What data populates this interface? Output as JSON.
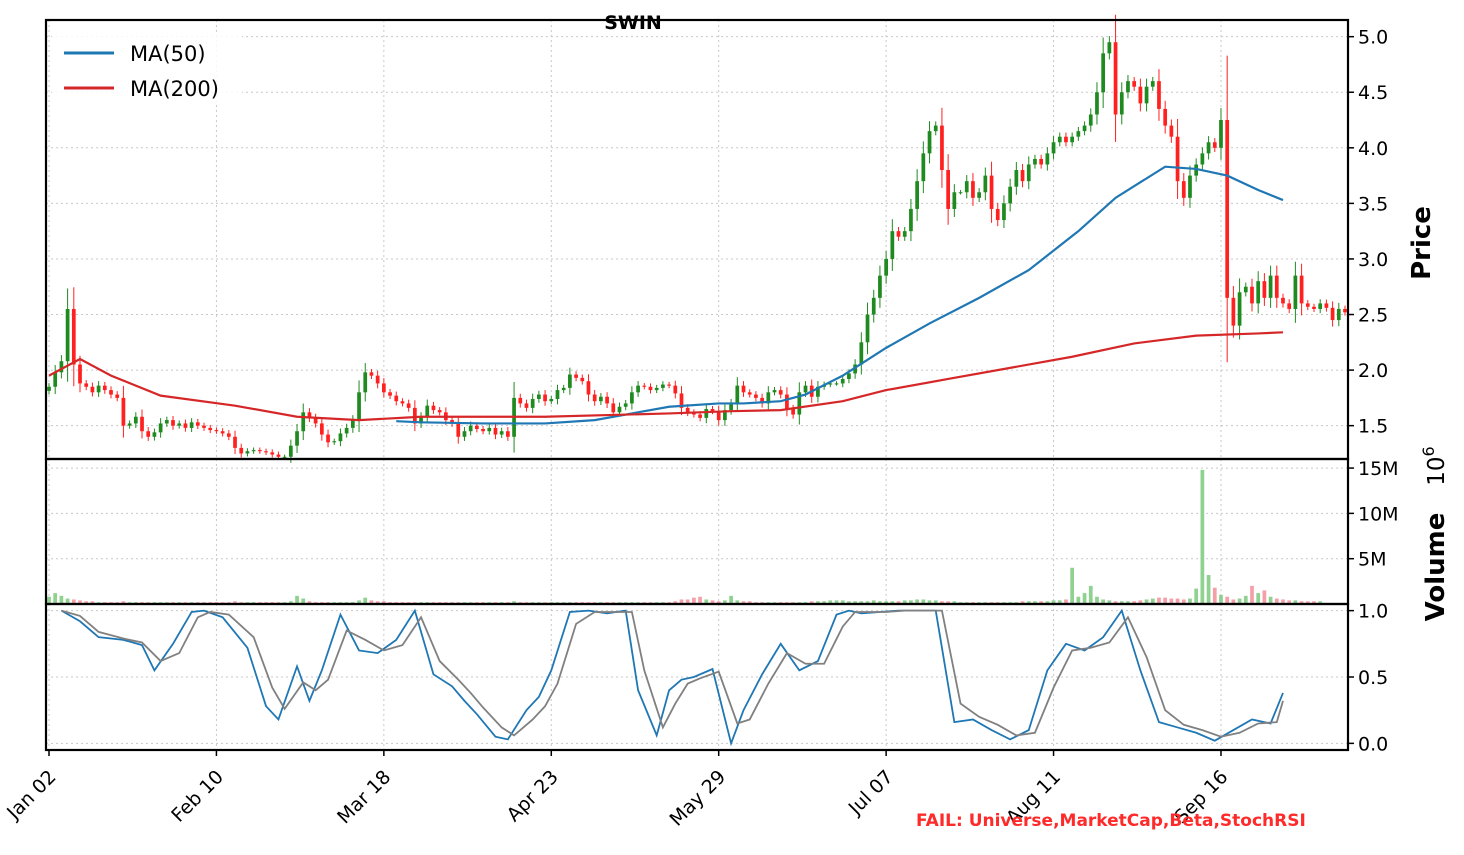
{
  "chart_data": {
    "type": "candlestick",
    "title": "SWIN",
    "x_tick_labels": [
      "Jan 02",
      "Feb 10",
      "Mar 18",
      "Apr 23",
      "May 29",
      "Jul 07",
      "Aug 11",
      "Sep 16"
    ],
    "x_tick_index": [
      0,
      27,
      54,
      81,
      108,
      135,
      162,
      189
    ],
    "price_panel": {
      "ylabel": "Price",
      "ylim": [
        1.2,
        5.15
      ],
      "yticks": [
        1.5,
        2.0,
        2.5,
        3.0,
        3.5,
        4.0,
        4.5,
        5.0
      ],
      "ytick_labels": [
        "1.5",
        "2.0",
        "2.5",
        "3.0",
        "3.5",
        "4.0",
        "4.5",
        "5.0"
      ],
      "grid": true,
      "legend_position": "top-left",
      "up_color": "#1f8a1f",
      "down_color": "#ff2020",
      "close": [
        1.85,
        1.98,
        2.08,
        2.55,
        2.05,
        1.88,
        1.85,
        1.8,
        1.86,
        1.82,
        1.78,
        1.75,
        1.5,
        1.52,
        1.58,
        1.45,
        1.4,
        1.44,
        1.52,
        1.55,
        1.5,
        1.52,
        1.48,
        1.53,
        1.5,
        1.48,
        1.46,
        1.45,
        1.43,
        1.4,
        1.3,
        1.25,
        1.27,
        1.28,
        1.27,
        1.26,
        1.24,
        1.22,
        1.22,
        1.32,
        1.45,
        1.62,
        1.57,
        1.52,
        1.42,
        1.35,
        1.36,
        1.43,
        1.48,
        1.55,
        1.8,
        1.98,
        1.95,
        1.88,
        1.8,
        1.77,
        1.72,
        1.7,
        1.66,
        1.52,
        1.58,
        1.68,
        1.64,
        1.62,
        1.55,
        1.52,
        1.4,
        1.45,
        1.5,
        1.47,
        1.45,
        1.48,
        1.42,
        1.45,
        1.4,
        1.75,
        1.7,
        1.66,
        1.74,
        1.78,
        1.72,
        1.74,
        1.82,
        1.84,
        1.96,
        1.93,
        1.9,
        1.78,
        1.72,
        1.76,
        1.7,
        1.62,
        1.67,
        1.7,
        1.8,
        1.86,
        1.85,
        1.82,
        1.84,
        1.87,
        1.86,
        1.79,
        1.66,
        1.62,
        1.6,
        1.57,
        1.65,
        1.63,
        1.55,
        1.64,
        1.7,
        1.86,
        1.8,
        1.78,
        1.75,
        1.7,
        1.8,
        1.82,
        1.78,
        1.65,
        1.6,
        1.8,
        1.86,
        1.76,
        1.85,
        1.87,
        1.88,
        1.88,
        1.92,
        1.97,
        2.05,
        2.25,
        2.5,
        2.65,
        2.85,
        3.0,
        3.25,
        3.2,
        3.25,
        3.45,
        3.7,
        3.95,
        4.15,
        4.2,
        3.8,
        3.45,
        3.6,
        3.6,
        3.7,
        3.55,
        3.6,
        3.75,
        3.45,
        3.35,
        3.5,
        3.65,
        3.8,
        3.7,
        3.85,
        3.9,
        3.85,
        3.95,
        4.05,
        4.1,
        4.05,
        4.1,
        4.15,
        4.2,
        4.3,
        4.5,
        4.85,
        4.95,
        4.3,
        4.5,
        4.6,
        4.55,
        4.4,
        4.55,
        4.6,
        4.35,
        4.2,
        4.1,
        3.7,
        3.55,
        3.75,
        3.85,
        3.95,
        4.05,
        4.0,
        4.25,
        2.65,
        2.4,
        2.7,
        2.75,
        2.6,
        2.8,
        2.65,
        2.85,
        2.65,
        2.6,
        2.55,
        2.85,
        2.6,
        2.57,
        2.55,
        2.6,
        2.56,
        2.45,
        2.55,
        2.52
      ],
      "series": [
        {
          "name": "MA(50)",
          "color": "#1f77b4",
          "x": [
            56,
            60,
            70,
            80,
            88,
            95,
            100,
            108,
            112,
            118,
            122,
            128,
            135,
            142,
            150,
            158,
            166,
            172,
            180,
            185,
            190,
            195,
            199
          ],
          "values": [
            1.54,
            1.53,
            1.52,
            1.52,
            1.55,
            1.62,
            1.67,
            1.7,
            1.7,
            1.72,
            1.78,
            1.95,
            2.2,
            2.42,
            2.65,
            2.9,
            3.25,
            3.55,
            3.83,
            3.81,
            3.75,
            3.62,
            3.53
          ]
        },
        {
          "name": "MA(200)",
          "color": "#d62728",
          "x": [
            0,
            5,
            10,
            18,
            30,
            40,
            50,
            60,
            80,
            100,
            110,
            118,
            128,
            135,
            145,
            155,
            165,
            175,
            185,
            195,
            199
          ],
          "values": [
            1.95,
            2.1,
            1.95,
            1.77,
            1.68,
            1.58,
            1.55,
            1.58,
            1.58,
            1.61,
            1.63,
            1.64,
            1.72,
            1.82,
            1.92,
            2.02,
            2.12,
            2.24,
            2.31,
            2.33,
            2.34
          ]
        }
      ]
    },
    "volume_panel": {
      "ylabel": "Volume",
      "ylim": [
        0,
        16
      ],
      "yticks": [
        5,
        10,
        15
      ],
      "ytick_labels": [
        "5M",
        "10M",
        "15M"
      ],
      "multiplier_label": "10",
      "multiplier_exponent": "6",
      "up_color": "#8fd18f",
      "down_color": "#f5a0a8",
      "values_millions": [
        0.8,
        1.2,
        0.9,
        0.6,
        0.5,
        0.4,
        0.3,
        0.3,
        0.2,
        0.2,
        0.2,
        0.2,
        0.3,
        0.2,
        0.2,
        0.2,
        0.2,
        0.2,
        0.2,
        0.2,
        0.2,
        0.2,
        0.2,
        0.2,
        0.2,
        0.2,
        0.2,
        0.2,
        0.2,
        0.2,
        0.3,
        0.2,
        0.2,
        0.2,
        0.2,
        0.2,
        0.2,
        0.2,
        0.2,
        0.3,
        0.9,
        0.6,
        0.3,
        0.2,
        0.2,
        0.2,
        0.2,
        0.2,
        0.2,
        0.2,
        0.4,
        0.7,
        0.4,
        0.3,
        0.3,
        0.2,
        0.2,
        0.2,
        0.2,
        0.2,
        0.2,
        0.2,
        0.2,
        0.2,
        0.2,
        0.2,
        0.2,
        0.2,
        0.2,
        0.2,
        0.2,
        0.2,
        0.2,
        0.2,
        0.2,
        0.3,
        0.2,
        0.2,
        0.2,
        0.2,
        0.2,
        0.2,
        0.2,
        0.2,
        0.2,
        0.2,
        0.2,
        0.2,
        0.2,
        0.2,
        0.2,
        0.2,
        0.2,
        0.2,
        0.2,
        0.2,
        0.2,
        0.2,
        0.2,
        0.2,
        0.2,
        0.3,
        0.5,
        0.5,
        0.7,
        0.8,
        0.5,
        0.4,
        0.3,
        0.4,
        0.9,
        0.4,
        0.3,
        0.3,
        0.2,
        0.2,
        0.2,
        0.2,
        0.2,
        0.2,
        0.2,
        0.2,
        0.2,
        0.3,
        0.3,
        0.3,
        0.4,
        0.4,
        0.4,
        0.3,
        0.3,
        0.3,
        0.3,
        0.4,
        0.3,
        0.3,
        0.3,
        0.3,
        0.4,
        0.4,
        0.5,
        0.5,
        0.4,
        0.4,
        0.3,
        0.3,
        0.3,
        0.2,
        0.2,
        0.2,
        0.2,
        0.2,
        0.2,
        0.2,
        0.2,
        0.2,
        0.2,
        0.3,
        0.3,
        0.3,
        0.3,
        0.3,
        0.4,
        0.4,
        0.5,
        4.0,
        0.8,
        1.2,
        2.0,
        0.8,
        0.5,
        0.4,
        0.3,
        0.3,
        0.3,
        0.3,
        0.4,
        0.5,
        0.6,
        0.7,
        0.7,
        0.6,
        0.6,
        0.5,
        0.6,
        1.7,
        14.8,
        3.2,
        1.8,
        1.0,
        0.8,
        0.5,
        0.6,
        0.9,
        2.0,
        1.2,
        1.5,
        0.8,
        0.6,
        0.5,
        0.4,
        0.4,
        0.3,
        0.3,
        0.3,
        0.3
      ]
    },
    "stochrsi_panel": {
      "ylim": [
        -0.05,
        1.05
      ],
      "yticks": [
        0.0,
        0.5,
        1.0
      ],
      "ytick_labels": [
        "0.0",
        "0.5",
        "1.0"
      ],
      "series": [
        {
          "name": "",
          "color": "#1f77b4",
          "x": [
            2,
            5,
            8,
            12,
            15,
            17,
            20,
            23,
            25,
            28,
            32,
            35,
            37,
            40,
            42,
            44,
            47,
            50,
            53,
            56,
            59,
            62,
            65,
            67,
            69,
            72,
            74,
            77,
            79,
            81,
            84,
            87,
            90,
            93,
            95,
            98,
            100,
            102,
            104,
            107,
            110,
            112,
            115,
            118,
            121,
            124,
            127,
            129,
            131,
            134,
            137,
            140,
            143,
            146,
            149,
            152,
            155,
            158,
            161,
            164,
            167,
            170,
            173,
            176,
            179,
            182,
            185,
            188,
            191,
            194,
            197,
            199
          ],
          "values": [
            1.0,
            0.92,
            0.8,
            0.78,
            0.74,
            0.55,
            0.75,
            0.99,
            1.0,
            0.95,
            0.72,
            0.28,
            0.18,
            0.58,
            0.32,
            0.55,
            0.97,
            0.7,
            0.68,
            0.78,
            1.0,
            0.52,
            0.43,
            0.32,
            0.22,
            0.05,
            0.03,
            0.25,
            0.35,
            0.55,
            0.99,
            1.0,
            0.98,
            1.0,
            0.4,
            0.06,
            0.4,
            0.48,
            0.5,
            0.56,
            0.0,
            0.25,
            0.52,
            0.75,
            0.55,
            0.62,
            0.97,
            1.0,
            0.98,
            0.99,
            1.0,
            1.0,
            1.0,
            0.16,
            0.18,
            0.1,
            0.03,
            0.1,
            0.55,
            0.75,
            0.7,
            0.8,
            1.0,
            0.55,
            0.16,
            0.12,
            0.08,
            0.02,
            0.1,
            0.18,
            0.15,
            0.38
          ],
          "x2": [],
          "values2": []
        },
        {
          "name": "",
          "color": "#808080",
          "x": [
            2,
            5,
            8,
            12,
            15,
            18,
            21,
            24,
            26,
            29,
            33,
            36,
            38,
            41,
            43,
            45,
            48,
            51,
            54,
            57,
            60,
            63,
            66,
            68,
            70,
            73,
            75,
            78,
            80,
            82,
            85,
            88,
            91,
            94,
            96,
            99,
            101,
            103,
            105,
            108,
            111,
            113,
            116,
            119,
            122,
            125,
            128,
            130,
            132,
            135,
            138,
            141,
            144,
            147,
            150,
            153,
            156,
            159,
            162,
            165,
            168,
            171,
            174,
            177,
            180,
            183,
            186,
            189,
            192,
            195,
            198,
            199
          ],
          "values": [
            1.0,
            0.96,
            0.84,
            0.79,
            0.76,
            0.62,
            0.68,
            0.95,
            0.99,
            0.97,
            0.8,
            0.42,
            0.26,
            0.46,
            0.4,
            0.48,
            0.85,
            0.78,
            0.7,
            0.74,
            0.95,
            0.62,
            0.48,
            0.38,
            0.27,
            0.12,
            0.06,
            0.18,
            0.28,
            0.45,
            0.9,
            0.99,
            0.99,
            0.99,
            0.55,
            0.12,
            0.3,
            0.45,
            0.49,
            0.54,
            0.15,
            0.18,
            0.45,
            0.68,
            0.6,
            0.6,
            0.88,
            0.99,
            0.99,
            0.99,
            1.0,
            1.0,
            1.0,
            0.3,
            0.2,
            0.14,
            0.06,
            0.08,
            0.42,
            0.7,
            0.72,
            0.76,
            0.95,
            0.65,
            0.25,
            0.14,
            0.1,
            0.05,
            0.08,
            0.15,
            0.16,
            0.32
          ]
        }
      ]
    }
  },
  "annotations": {
    "fail_text": "FAIL: Universe,MarketCap,Beta,StochRSI"
  }
}
